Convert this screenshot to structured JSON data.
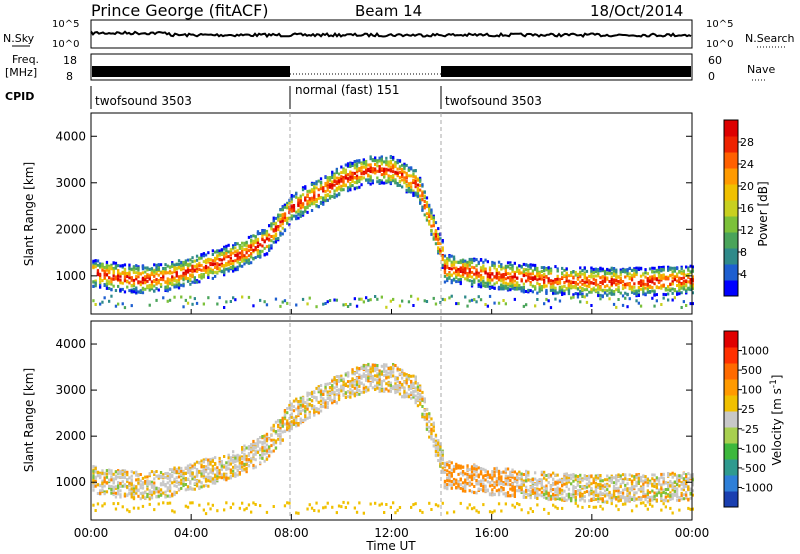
{
  "header": {
    "station": "Prince George (fitACF)",
    "beam": "Beam 14",
    "date": "18/Oct/2014"
  },
  "summary_panels": {
    "nsky_label": "N.Sky",
    "nsky_ticks": [
      "10^5",
      "10^0"
    ],
    "nsearch_label": "N.Search",
    "nsearch_ticks": [
      "10^5",
      "10^0"
    ],
    "freq_label": "Freq.",
    "freq_unit": "[MHz]",
    "freq_ticks": [
      "18",
      "8"
    ],
    "nave_label": "Nave",
    "nave_ticks": [
      "60",
      "0"
    ],
    "cpid_label": "CPID",
    "cpid_segments": [
      {
        "label": "twofsound 3503",
        "start_h": 0,
        "end_h": 8
      },
      {
        "label": "normal (fast) 151",
        "start_h": 8,
        "end_h": 14
      },
      {
        "label": "twofsound 3503",
        "start_h": 14,
        "end_h": 24
      }
    ]
  },
  "x_axis": {
    "label": "Time UT",
    "ticks": [
      "00:00",
      "04:00",
      "08:00",
      "12:00",
      "16:00",
      "20:00",
      "00:00"
    ]
  },
  "power_colorbar": {
    "label": "Power [dB]",
    "ticks": [
      "4",
      "8",
      "12",
      "16",
      "20",
      "24",
      "28"
    ],
    "colors": [
      "#0000ff",
      "#1e5fd0",
      "#2f8a8a",
      "#4aa45a",
      "#7cc13a",
      "#c8d020",
      "#f0c000",
      "#ff9a00",
      "#ff6000",
      "#ee2200",
      "#dd0000"
    ]
  },
  "velocity_colorbar": {
    "label": "Velocity [m s^-1]",
    "ticks": [
      "1000",
      "500",
      "100",
      "25",
      "-25",
      "-100",
      "-500",
      "-1000"
    ],
    "colors": [
      "#1a3fb0",
      "#2e7fd8",
      "#2f9a8f",
      "#3db83d",
      "#a8d050",
      "#c8c8c8",
      "#f0c000",
      "#ff9a00",
      "#ff6a00",
      "#ff3000",
      "#e00000"
    ]
  },
  "chart_data": [
    {
      "type": "heatmap",
      "title": "",
      "xlabel": "Time UT",
      "ylabel": "Slant Range [km]",
      "xlim": [
        0,
        24
      ],
      "ylim": [
        180,
        4500
      ],
      "y_ticks": [
        1000,
        2000,
        3000,
        4000
      ],
      "colorbar": "Power [dB]",
      "features": [
        {
          "desc": "ionospheric band",
          "t": [
            0,
            1,
            2,
            3,
            4,
            5,
            6,
            7,
            8,
            9,
            10,
            11,
            12,
            13,
            14
          ],
          "r": [
            1100,
            1000,
            950,
            1000,
            1150,
            1300,
            1500,
            1800,
            2500,
            2800,
            3100,
            3300,
            3300,
            3000,
            1500
          ]
        },
        {
          "desc": "near-range band",
          "t": [
            14,
            16,
            18,
            20,
            22,
            24
          ],
          "r": [
            1200,
            1050,
            950,
            900,
            900,
            950
          ]
        }
      ]
    },
    {
      "type": "heatmap",
      "title": "",
      "xlabel": "Time UT",
      "ylabel": "Slant Range [km]",
      "xlim": [
        0,
        24
      ],
      "ylim": [
        180,
        4500
      ],
      "y_ticks": [
        1000,
        2000,
        3000,
        4000
      ],
      "colorbar": "Velocity [m s^-1]"
    }
  ]
}
